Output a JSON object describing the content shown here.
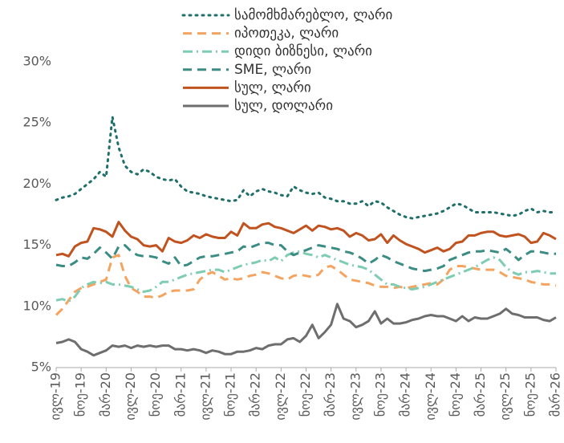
{
  "chart_data": {
    "type": "line",
    "categories": [
      "ივლ-19",
      null,
      null,
      null,
      "ნოე-19",
      null,
      null,
      null,
      "მარ-20",
      null,
      null,
      null,
      "ივლ-20",
      null,
      null,
      null,
      "ნოე-20",
      null,
      null,
      null,
      "მარ-21",
      null,
      null,
      null,
      "ივლ-21",
      null,
      null,
      null,
      "ნოე-21",
      null,
      null,
      null,
      "მარ-22",
      null,
      null,
      null,
      "ივლ-22",
      null,
      null,
      null,
      "ნოე-22",
      null,
      null,
      null,
      "მარ-23",
      null,
      null,
      null,
      "ივლ-23",
      null,
      null,
      null,
      "ნოე-23",
      null,
      null,
      null,
      "მარ-24",
      null,
      null,
      null,
      "ივლ-24",
      null,
      null,
      null,
      "ნოე-24",
      null,
      null,
      null,
      "მარ-25",
      null,
      null,
      null,
      "ივლ-25",
      null,
      null,
      null,
      "ნოე-25",
      null,
      null,
      null,
      "მარ-26"
    ],
    "ylim": [
      5,
      30
    ],
    "yticks": [
      {
        "value": 5,
        "label": "5%"
      },
      {
        "value": 10,
        "label": "10%"
      },
      {
        "value": 15,
        "label": "15%"
      },
      {
        "value": 20,
        "label": "20%"
      },
      {
        "value": 25,
        "label": "25%"
      },
      {
        "value": 30,
        "label": "30%"
      }
    ],
    "grid": false,
    "legend": "top",
    "series": [
      {
        "name": "სამომხმარებლო, ლარი",
        "color": "#1f6f6b",
        "style": "dotted",
        "values": [
          18.7,
          18.9,
          19.0,
          19.2,
          19.6,
          20.0,
          20.4,
          21.0,
          20.6,
          25.5,
          23.0,
          21.5,
          21.0,
          20.8,
          21.2,
          21.0,
          20.6,
          20.4,
          20.3,
          20.4,
          19.8,
          19.4,
          19.3,
          19.2,
          19.0,
          18.9,
          18.8,
          18.7,
          18.6,
          18.7,
          19.5,
          19.0,
          19.4,
          19.6,
          19.4,
          19.3,
          19.1,
          19.0,
          19.8,
          19.5,
          19.3,
          19.2,
          19.3,
          18.9,
          18.8,
          18.6,
          18.6,
          18.4,
          18.4,
          18.6,
          18.2,
          18.6,
          18.5,
          18.1,
          17.8,
          17.5,
          17.3,
          17.2,
          17.3,
          17.4,
          17.5,
          17.6,
          17.8,
          18.1,
          18.4,
          18.3,
          18.0,
          17.7,
          17.7,
          17.7,
          17.7,
          17.6,
          17.5,
          17.4,
          17.5,
          17.8,
          18.0,
          17.7,
          17.8,
          17.7,
          17.7
        ]
      },
      {
        "name": "იპოთეკა, ლარი",
        "color": "#f4a460",
        "style": "dashed",
        "values": [
          9.3,
          9.8,
          10.5,
          11.2,
          11.5,
          11.6,
          11.8,
          12.0,
          12.2,
          14.0,
          14.2,
          12.5,
          11.5,
          11.2,
          10.8,
          10.8,
          10.7,
          10.9,
          11.2,
          11.3,
          11.3,
          11.3,
          11.4,
          12.2,
          12.6,
          12.8,
          12.5,
          12.2,
          12.3,
          12.2,
          12.3,
          12.5,
          12.6,
          12.8,
          12.7,
          12.5,
          12.3,
          12.2,
          12.5,
          12.6,
          12.5,
          12.4,
          12.6,
          13.2,
          13.3,
          13.0,
          12.6,
          12.2,
          12.1,
          12.0,
          11.9,
          11.7,
          11.6,
          11.6,
          11.5,
          11.6,
          11.5,
          11.6,
          11.7,
          11.8,
          11.9,
          11.8,
          12.2,
          13.0,
          13.3,
          13.3,
          13.2,
          13.1,
          13.0,
          13.0,
          13.0,
          12.8,
          12.5,
          12.4,
          12.3,
          12.2,
          12.0,
          11.9,
          11.8,
          11.8,
          11.7
        ]
      },
      {
        "name": "დიდი ბიზნესი, ლარი",
        "color": "#7fcdb0",
        "style": "dashdot",
        "values": [
          10.5,
          10.6,
          10.4,
          10.8,
          11.5,
          11.8,
          12.0,
          11.9,
          12.0,
          11.8,
          11.8,
          11.7,
          11.6,
          11.4,
          11.2,
          11.3,
          11.6,
          12.0,
          12.0,
          12.2,
          12.4,
          12.6,
          12.7,
          12.8,
          12.9,
          13.0,
          13.0,
          12.8,
          13.0,
          13.2,
          13.4,
          13.5,
          13.6,
          13.8,
          13.7,
          14.0,
          13.7,
          14.2,
          14.4,
          14.5,
          14.3,
          14.2,
          14.0,
          14.2,
          14.0,
          13.8,
          13.6,
          13.4,
          13.3,
          13.2,
          13.0,
          12.6,
          12.2,
          11.8,
          11.8,
          11.6,
          11.5,
          11.4,
          11.5,
          11.6,
          11.8,
          12.0,
          12.2,
          12.4,
          12.6,
          12.8,
          13.0,
          13.2,
          13.5,
          13.8,
          14.0,
          13.8,
          13.2,
          12.8,
          12.6,
          12.8,
          12.8,
          12.9,
          12.8,
          12.7,
          12.7
        ]
      },
      {
        "name": "SME, ლარი",
        "color": "#3b8c83",
        "style": "dashed",
        "values": [
          13.4,
          13.3,
          13.3,
          13.6,
          14.0,
          13.9,
          14.3,
          14.8,
          14.4,
          13.9,
          14.9,
          15.0,
          14.5,
          14.2,
          14.1,
          14.1,
          14.0,
          13.7,
          13.5,
          14.0,
          13.3,
          13.4,
          13.7,
          14.0,
          14.1,
          14.1,
          14.2,
          14.3,
          14.4,
          14.5,
          14.9,
          14.8,
          15.0,
          15.2,
          15.2,
          15.0,
          15.0,
          14.5,
          14.2,
          14.4,
          14.6,
          14.8,
          15.0,
          14.9,
          14.8,
          14.7,
          14.5,
          14.4,
          14.2,
          13.9,
          13.5,
          13.8,
          14.2,
          14.0,
          13.7,
          13.5,
          13.3,
          13.1,
          13.0,
          12.9,
          13.0,
          13.1,
          13.3,
          13.8,
          14.0,
          14.2,
          14.4,
          14.5,
          14.5,
          14.6,
          14.5,
          14.4,
          14.7,
          14.3,
          13.8,
          14.2,
          14.5,
          14.5,
          14.4,
          14.3,
          14.3
        ]
      },
      {
        "name": "სულ, ლარი",
        "color": "#c0531f",
        "style": "solid",
        "values": [
          14.2,
          14.3,
          14.1,
          14.9,
          15.2,
          15.3,
          16.4,
          16.3,
          16.1,
          15.7,
          16.9,
          16.2,
          15.7,
          15.5,
          15.0,
          14.9,
          15.0,
          14.5,
          15.6,
          15.3,
          15.2,
          15.4,
          15.8,
          15.6,
          15.9,
          15.7,
          15.6,
          15.6,
          16.1,
          15.8,
          16.8,
          16.4,
          16.4,
          16.7,
          16.8,
          16.5,
          16.4,
          16.2,
          16.0,
          16.3,
          16.6,
          16.2,
          16.6,
          16.5,
          16.3,
          16.4,
          16.2,
          15.7,
          16.0,
          15.8,
          15.4,
          15.5,
          15.9,
          15.2,
          15.8,
          15.4,
          15.1,
          14.9,
          14.7,
          14.4,
          14.6,
          14.8,
          14.5,
          14.7,
          15.2,
          15.3,
          15.8,
          15.8,
          16.0,
          16.1,
          16.1,
          15.8,
          15.7,
          15.8,
          15.9,
          15.7,
          15.2,
          15.3,
          16.0,
          15.8,
          15.5
        ]
      },
      {
        "name": "სულ, დოლარი",
        "color": "#6e6e6e",
        "style": "solid",
        "values": [
          7.0,
          7.1,
          7.3,
          7.1,
          6.5,
          6.3,
          6.0,
          6.2,
          6.4,
          6.8,
          6.7,
          6.8,
          6.6,
          6.8,
          6.7,
          6.8,
          6.7,
          6.8,
          6.8,
          6.5,
          6.5,
          6.4,
          6.5,
          6.4,
          6.2,
          6.4,
          6.3,
          6.1,
          6.1,
          6.3,
          6.3,
          6.4,
          6.6,
          6.5,
          6.8,
          6.9,
          6.9,
          7.3,
          7.4,
          7.1,
          7.6,
          8.5,
          7.4,
          7.9,
          8.5,
          10.2,
          9.0,
          8.8,
          8.3,
          8.5,
          8.8,
          9.6,
          8.6,
          9.0,
          8.6,
          8.6,
          8.7,
          8.9,
          9.0,
          9.2,
          9.3,
          9.2,
          9.2,
          9.0,
          8.8,
          9.2,
          8.8,
          9.1,
          9.0,
          9.0,
          9.2,
          9.4,
          9.8,
          9.4,
          9.3,
          9.1,
          9.1,
          9.1,
          8.9,
          8.8,
          9.1
        ]
      }
    ]
  }
}
